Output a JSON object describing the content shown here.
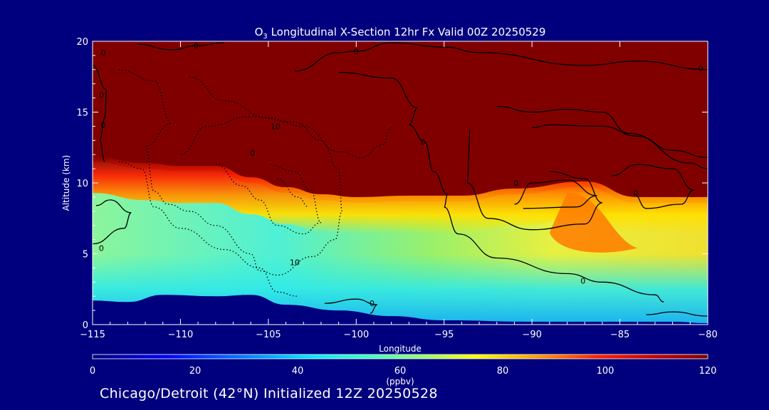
{
  "chart_data": {
    "type": "heatmap",
    "title_prefix": "O",
    "title_sub": "3",
    "title_rest": " Longitudinal X-Section 12hr  Fx Valid 00Z 20250529",
    "xlabel": "Longitude",
    "ylabel": "Altitude (km)",
    "xlim": [
      -115,
      -80
    ],
    "ylim": [
      0,
      20
    ],
    "xticks": [
      -115,
      -110,
      -105,
      -100,
      -95,
      -90,
      -85,
      -80
    ],
    "xtick_labels": [
      "−115",
      "−110",
      "−105",
      "−100",
      "−95",
      "−90",
      "−85",
      "−80"
    ],
    "yticks": [
      0,
      5,
      10,
      15,
      20
    ],
    "ytick_labels": [
      "0",
      "5",
      "10",
      "15",
      "20"
    ],
    "colorbar": {
      "min": 0,
      "max": 120,
      "ticks": [
        0,
        20,
        40,
        60,
        80,
        100,
        120
      ],
      "tick_labels": [
        "0",
        "20",
        "40",
        "60",
        "80",
        "100",
        "120"
      ],
      "unit": "(ppbv)"
    },
    "tropopause_altitude_km": [
      {
        "lon": -115,
        "alt": 11.5
      },
      {
        "lon": -112,
        "alt": 11.0
      },
      {
        "lon": -110,
        "alt": 10.8
      },
      {
        "lon": -108,
        "alt": 10.8
      },
      {
        "lon": -106,
        "alt": 10.0
      },
      {
        "lon": -104,
        "alt": 9.3
      },
      {
        "lon": -102,
        "alt": 8.8
      },
      {
        "lon": -100,
        "alt": 8.6
      },
      {
        "lon": -97,
        "alt": 8.7
      },
      {
        "lon": -94,
        "alt": 8.7
      },
      {
        "lon": -91,
        "alt": 9.2
      },
      {
        "lon": -87,
        "alt": 9.7
      },
      {
        "lon": -84,
        "alt": 8.6
      },
      {
        "lon": -80,
        "alt": 8.6
      }
    ],
    "terrain_altitude_km": [
      {
        "lon": -115,
        "alt": 1.7
      },
      {
        "lon": -113,
        "alt": 1.6
      },
      {
        "lon": -111,
        "alt": 2.1
      },
      {
        "lon": -108,
        "alt": 2.0
      },
      {
        "lon": -106,
        "alt": 2.1
      },
      {
        "lon": -104,
        "alt": 1.4
      },
      {
        "lon": -101,
        "alt": 1.0
      },
      {
        "lon": -98,
        "alt": 0.6
      },
      {
        "lon": -95,
        "alt": 0.3
      },
      {
        "lon": -90,
        "alt": 0.2
      },
      {
        "lon": -85,
        "alt": 0.2
      },
      {
        "lon": -82,
        "alt": 0.2
      },
      {
        "lon": -80,
        "alt": 0.1
      }
    ],
    "contour_labels": [
      {
        "text": "0",
        "lon": -114.4,
        "alt": 19.2
      },
      {
        "text": "0",
        "lon": -109.1,
        "alt": 19.7
      },
      {
        "text": "0",
        "lon": -100.0,
        "alt": 19.3
      },
      {
        "text": "0",
        "lon": -80.4,
        "alt": 18.1
      },
      {
        "text": "0",
        "lon": -114.5,
        "alt": 16.2
      },
      {
        "text": "0",
        "lon": -114.4,
        "alt": 14.1
      },
      {
        "text": "0",
        "lon": -96.2,
        "alt": 12.9
      },
      {
        "text": "10",
        "lon": -104.6,
        "alt": 14.0
      },
      {
        "text": "0",
        "lon": -105.9,
        "alt": 12.1
      },
      {
        "text": "0",
        "lon": -90.9,
        "alt": 10.0
      },
      {
        "text": "0",
        "lon": -84.1,
        "alt": 9.3
      },
      {
        "text": "0",
        "lon": -114.5,
        "alt": 5.4
      },
      {
        "text": "10",
        "lon": -103.5,
        "alt": 4.4
      },
      {
        "text": "0",
        "lon": -87.1,
        "alt": 3.1
      },
      {
        "text": "0",
        "lon": -99.1,
        "alt": 1.5
      }
    ]
  },
  "footer": "Chicago/Detroit (42°N) Initialized 12Z 20250528"
}
